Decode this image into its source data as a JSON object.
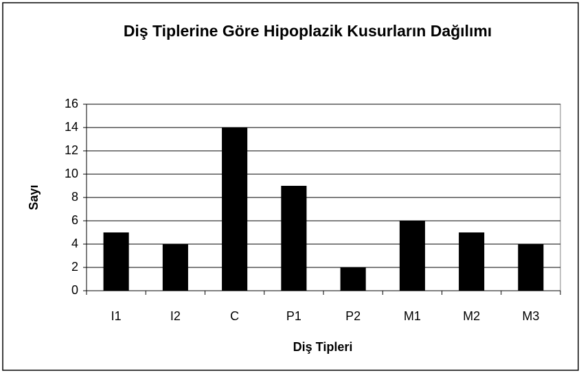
{
  "chart_data": {
    "type": "bar",
    "title": "Diş Tiplerine Göre Hipoplazik Kusurların Dağılımı",
    "x_label": "Diş Tipleri",
    "y_label": "Sayı",
    "categories": [
      "I1",
      "I2",
      "C",
      "P1",
      "P2",
      "M1",
      "M2",
      "M3"
    ],
    "values": [
      5,
      4,
      14,
      9,
      2,
      6,
      5,
      4
    ],
    "color": "#000000",
    "ylim": [
      0,
      16
    ],
    "yticks": [
      0,
      2,
      4,
      6,
      8,
      10,
      12,
      14,
      16
    ],
    "grid": true
  }
}
